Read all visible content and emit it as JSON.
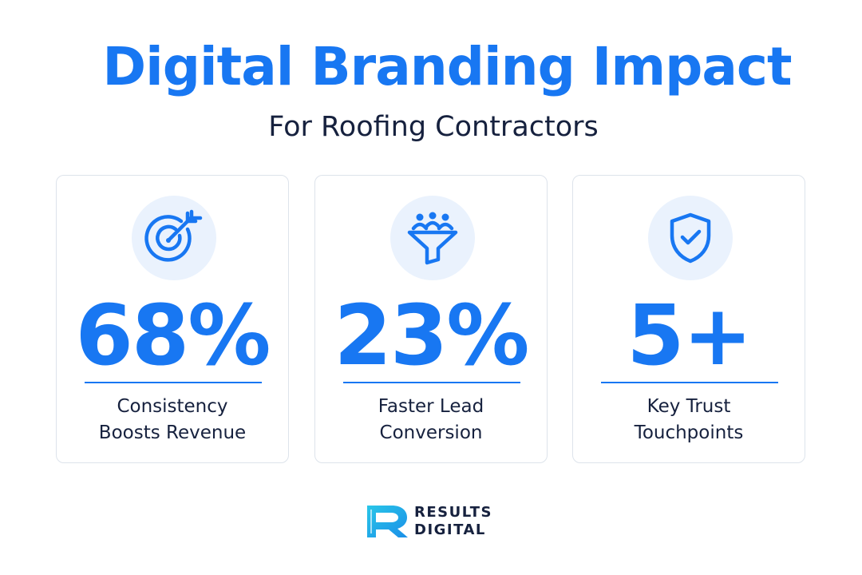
{
  "header": {
    "title": "Digital Branding Impact",
    "subtitle": "For Roofing Contractors"
  },
  "cards": [
    {
      "icon": "target-icon",
      "value": "68%",
      "label_lines": [
        "Consistency",
        "Boosts Revenue"
      ]
    },
    {
      "icon": "funnel-people-icon",
      "value": "23%",
      "label_lines": [
        "Faster Lead",
        "Conversion"
      ]
    },
    {
      "icon": "shield-check-icon",
      "value": "5+",
      "label_lines": [
        "Key Trust",
        "Touchpoints"
      ]
    }
  ],
  "brand": {
    "line1": "RESULTS",
    "line2": "DIGITAL",
    "logo_icon": "results-digital-logo-icon"
  },
  "colors": {
    "accent": "#1877f2",
    "text_dark": "#16213e",
    "icon_bg": "#eaf2fd",
    "card_border": "#dde3eb",
    "logo_gradient_start": "#29c6e8",
    "logo_gradient_end": "#1b8fe8"
  }
}
